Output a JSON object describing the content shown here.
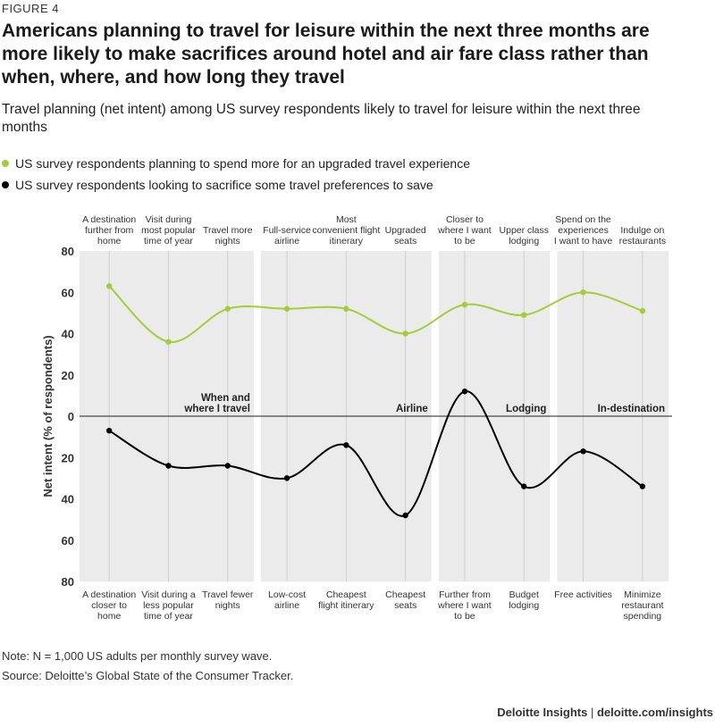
{
  "figure_label": "FIGURE 4",
  "title": "Americans planning to travel for leisure within the next three months are more likely to make sacrifices around hotel and air fare class rather than when, where, and how long they travel",
  "subtitle": "Travel planning (net intent) among US survey respondents likely to travel for leisure within the next three months",
  "legend": [
    {
      "label": "US survey respondents planning to spend more for an upgraded travel experience",
      "color": "#a3cd3b"
    },
    {
      "label": "US survey respondents looking to sacrifice some travel preferences to save",
      "color": "#000000"
    }
  ],
  "note": "Note: N = 1,000 US adults per monthly survey wave.",
  "source": "Source: Deloitte’s Global State of the Consumer Tracker.",
  "brand": "Deloitte Insights",
  "brand_separator": "|",
  "brand_url": "deloitte.com/insights",
  "chart_data": {
    "type": "line",
    "ylabel": "Net intent (% of respondents)",
    "ylim": [
      -80,
      80
    ],
    "y_tick_values": [
      80,
      60,
      40,
      20,
      0,
      -20,
      -40,
      -60,
      -80
    ],
    "y_tick_labels": [
      "80",
      "60",
      "40",
      "20",
      "0",
      "20",
      "40",
      "60",
      "80"
    ],
    "grid": false,
    "top_categories": [
      [
        "A destination",
        "further from",
        "home"
      ],
      [
        "Visit during",
        "most popular",
        "time of year"
      ],
      [
        "Travel more",
        "nights"
      ],
      [
        "Full-service",
        "airline"
      ],
      [
        "Most",
        "convenient flight",
        "itinerary"
      ],
      [
        "Upgraded",
        "seats"
      ],
      [
        "Closer to",
        "where I want",
        "to be"
      ],
      [
        "Upper class",
        "lodging"
      ],
      [
        "Spend on the",
        "experiences",
        "I want to have"
      ],
      [
        "Indulge on",
        "restaurants"
      ]
    ],
    "bottom_categories": [
      [
        "A destination",
        "closer to",
        "home"
      ],
      [
        "Visit during a",
        "less popular",
        "time of year"
      ],
      [
        "Travel fewer",
        "nights"
      ],
      [
        "Low-cost",
        "airline"
      ],
      [
        "Cheapest",
        "flight itinerary"
      ],
      [
        "Cheapest",
        "seats"
      ],
      [
        "Further from",
        "where I want",
        "to be"
      ],
      [
        "Budget",
        "lodging"
      ],
      [
        "Free activities"
      ],
      [
        "Minimize",
        "restaurant",
        "spending"
      ]
    ],
    "groups": [
      {
        "label": [
          "When and",
          "where I travel"
        ],
        "start": 0,
        "end": 2
      },
      {
        "label": [
          "Airline"
        ],
        "start": 3,
        "end": 5
      },
      {
        "label": [
          "Lodging"
        ],
        "start": 6,
        "end": 7
      },
      {
        "label": [
          "In-destination"
        ],
        "start": 8,
        "end": 9
      }
    ],
    "series": [
      {
        "values": [
          63,
          36,
          52,
          52,
          52,
          40,
          54,
          49,
          60,
          51
        ],
        "color": "#a3cd3b"
      },
      {
        "values": [
          -7,
          -24,
          -24,
          -30,
          -14,
          -48,
          12,
          -34,
          -17,
          -34
        ],
        "color": "#000000"
      }
    ]
  }
}
